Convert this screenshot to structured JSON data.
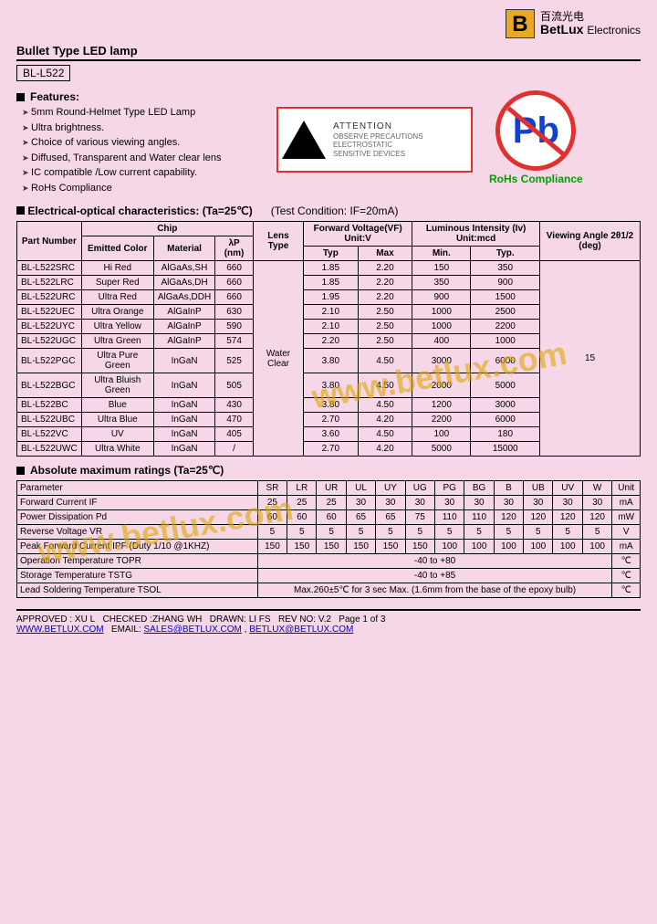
{
  "brand": {
    "logo_letter": "B",
    "cn": "百流光电",
    "en": "BetLux",
    "en_sub": "Electronics"
  },
  "title": "Bullet Type LED lamp",
  "part_number": "BL-L522",
  "features_label": "Features:",
  "features": [
    "5mm Round-Helmet Type LED Lamp",
    "Ultra brightness.",
    "Choice of various viewing angles.",
    "Diffused, Transparent and Water clear lens",
    "IC compatible /Low current capability.",
    "RoHs Compliance"
  ],
  "esd": {
    "title": "ATTENTION",
    "line1": "OBSERVE PRECAUTIONS",
    "line2": "ELECTROSTATIC",
    "line3": "SENSITIVE DEVICES"
  },
  "pb": {
    "symbol": "Pb",
    "label": "RoHs Compliance"
  },
  "eoc": {
    "title": "Electrical-optical characteristics: (Ta=25℃)",
    "cond": "(Test Condition: IF=20mA)",
    "headers": {
      "pn": "Part Number",
      "chip": "Chip",
      "emitted": "Emitted Color",
      "material": "Material",
      "lambda": "λP (nm)",
      "lens": "Lens Type",
      "vf": "Forward Voltage(VF) Unit:V",
      "iv": "Luminous Intensity (Iv) Unit:mcd",
      "angle": "Viewing Angle 2θ1/2 (deg)",
      "typ": "Typ",
      "max": "Max",
      "min": "Min.",
      "typ2": "Typ."
    },
    "lens_type": "Water Clear",
    "angle_value": "15",
    "rows": [
      {
        "pn": "BL-L522SRC",
        "color": "Hi Red",
        "mat": "AlGaAs,SH",
        "wl": "660",
        "vft": "1.85",
        "vfm": "2.20",
        "ivmin": "150",
        "ivtyp": "350"
      },
      {
        "pn": "BL-L522LRC",
        "color": "Super Red",
        "mat": "AlGaAs,DH",
        "wl": "660",
        "vft": "1.85",
        "vfm": "2.20",
        "ivmin": "350",
        "ivtyp": "900"
      },
      {
        "pn": "BL-L522URC",
        "color": "Ultra Red",
        "mat": "AlGaAs,DDH",
        "wl": "660",
        "vft": "1.95",
        "vfm": "2.20",
        "ivmin": "900",
        "ivtyp": "1500"
      },
      {
        "pn": "BL-L522UEC",
        "color": "Ultra Orange",
        "mat": "AlGaInP",
        "wl": "630",
        "vft": "2.10",
        "vfm": "2.50",
        "ivmin": "1000",
        "ivtyp": "2500"
      },
      {
        "pn": "BL-L522UYC",
        "color": "Ultra Yellow",
        "mat": "AlGaInP",
        "wl": "590",
        "vft": "2.10",
        "vfm": "2.50",
        "ivmin": "1000",
        "ivtyp": "2200"
      },
      {
        "pn": "BL-L522UGC",
        "color": "Ultra Green",
        "mat": "AlGaInP",
        "wl": "574",
        "vft": "2.20",
        "vfm": "2.50",
        "ivmin": "400",
        "ivtyp": "1000"
      },
      {
        "pn": "BL-L522PGC",
        "color": "Ultra Pure Green",
        "mat": "InGaN",
        "wl": "525",
        "vft": "3.80",
        "vfm": "4.50",
        "ivmin": "3000",
        "ivtyp": "6000"
      },
      {
        "pn": "BL-L522BGC",
        "color": "Ultra Bluish Green",
        "mat": "InGaN",
        "wl": "505",
        "vft": "3.80",
        "vfm": "4.50",
        "ivmin": "2000",
        "ivtyp": "5000"
      },
      {
        "pn": "BL-L522BC",
        "color": "Blue",
        "mat": "InGaN",
        "wl": "430",
        "vft": "3.80",
        "vfm": "4.50",
        "ivmin": "1200",
        "ivtyp": "3000"
      },
      {
        "pn": "BL-L522UBC",
        "color": "Ultra Blue",
        "mat": "InGaN",
        "wl": "470",
        "vft": "2.70",
        "vfm": "4.20",
        "ivmin": "2200",
        "ivtyp": "6000"
      },
      {
        "pn": "BL-L522VC",
        "color": "UV",
        "mat": "InGaN",
        "wl": "405",
        "vft": "3.60",
        "vfm": "4.50",
        "ivmin": "100",
        "ivtyp": "180"
      },
      {
        "pn": "BL-L522UWC",
        "color": "Ultra White",
        "mat": "InGaN",
        "wl": "/",
        "vft": "2.70",
        "vfm": "4.20",
        "ivmin": "5000",
        "ivtyp": "15000"
      }
    ]
  },
  "abs": {
    "title": "Absolute maximum ratings (Ta=25℃)",
    "cols": [
      "SR",
      "LR",
      "UR",
      "UL",
      "UY",
      "UG",
      "PG",
      "BG",
      "B",
      "UB",
      "UV",
      "W"
    ],
    "unit_h": "Unit",
    "rows": [
      {
        "param": "Forward Current IF",
        "v": [
          "25",
          "25",
          "25",
          "30",
          "30",
          "30",
          "30",
          "30",
          "30",
          "30",
          "30",
          "30"
        ],
        "u": "mA"
      },
      {
        "param": "Power Dissipation Pd",
        "v": [
          "60",
          "60",
          "60",
          "65",
          "65",
          "75",
          "110",
          "110",
          "120",
          "120",
          "120",
          "120"
        ],
        "u": "mW"
      },
      {
        "param": "Reverse Voltage VR",
        "v": [
          "5",
          "5",
          "5",
          "5",
          "5",
          "5",
          "5",
          "5",
          "5",
          "5",
          "5",
          "5"
        ],
        "u": "V"
      },
      {
        "param": "Peak Forward Current IPF (Duty 1/10 @1KHZ)",
        "v": [
          "150",
          "150",
          "150",
          "150",
          "150",
          "150",
          "100",
          "100",
          "100",
          "100",
          "100",
          "100"
        ],
        "u": "mA"
      }
    ],
    "opr": {
      "param": "Operation Temperature TOPR",
      "val": "-40 to +80",
      "u": "℃"
    },
    "stg": {
      "param": "Storage Temperature TSTG",
      "val": "-40 to +85",
      "u": "℃"
    },
    "sol": {
      "param": "Lead Soldering Temperature TSOL",
      "val": "Max.260±5℃ for 3 sec Max. (1.6mm from the base of the epoxy bulb)",
      "u": "℃"
    }
  },
  "footer": {
    "approved": "APPROVED : XU L",
    "checked": "CHECKED :ZHANG WH",
    "drawn": "DRAWN: LI FS",
    "rev": "REV NO: V.2",
    "page": "Page 1 of 3",
    "www": "WWW.BETLUX.COM",
    "email_label": "EMAIL:",
    "email1": "SALES@BETLUX.COM",
    "email2": "BETLUX@BETLUX.COM"
  },
  "watermark": "www.betlux.com"
}
